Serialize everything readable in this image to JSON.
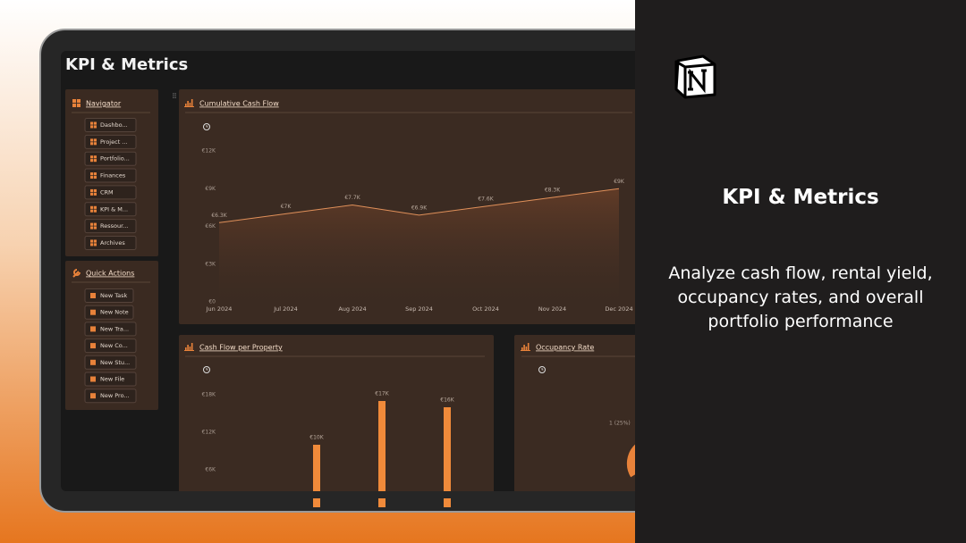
{
  "device": {
    "page_title": "KPI & Metrics"
  },
  "navigator": {
    "title": "Navigator",
    "items": [
      "Dashbo...",
      "Project ...",
      "Portfolio...",
      "Finances",
      "CRM",
      "KPI & M...",
      "Ressour...",
      "Archives"
    ]
  },
  "quick_actions": {
    "title": "Quick Actions",
    "items": [
      "New Task",
      "New Note",
      "New Tra...",
      "New Co...",
      "New Stu...",
      "New File",
      "New Pro..."
    ]
  },
  "chart_data": [
    {
      "type": "line",
      "title": "Cumulative Cash Flow",
      "color": "#e0905a",
      "categories": [
        "Jun 2024",
        "Jul 2024",
        "Aug 2024",
        "Sep 2024",
        "Oct 2024",
        "Nov 2024",
        "Dec 2024"
      ],
      "values": [
        6300,
        7000,
        7700,
        6900,
        7600,
        8300,
        9000
      ],
      "value_labels": [
        "€6.3K",
        "€7K",
        "€7.7K",
        "€6.9K",
        "€7.6K",
        "€8.3K",
        "€9K"
      ],
      "ylim": [
        0,
        12000
      ],
      "yticks": [
        {
          "value": 0,
          "label": "€0"
        },
        {
          "value": 3000,
          "label": "€3K"
        },
        {
          "value": 6000,
          "label": "€6K"
        },
        {
          "value": 9000,
          "label": "€9K"
        },
        {
          "value": 12000,
          "label": "€12K"
        }
      ]
    },
    {
      "type": "bar",
      "title": "Cash Flow per Property",
      "color": "#f08a3a",
      "categories": [
        null,
        null,
        null,
        null
      ],
      "values": [
        null,
        10000,
        17000,
        16000
      ],
      "value_labels": [
        null,
        "€10K",
        "€17K",
        "€16K"
      ],
      "ylim": [
        0,
        18000
      ],
      "yticks": [
        {
          "value": 6000,
          "label": "€6K"
        },
        {
          "value": 12000,
          "label": "€12K"
        },
        {
          "value": 18000,
          "label": "€18K"
        }
      ]
    }
  ],
  "occupancy": {
    "title": "Occupancy Rate",
    "label": "1 (25%)"
  },
  "promo": {
    "title": "KPI & Metrics",
    "description": "Analyze cash flow, rental yield, occupancy rates, and overall portfolio performance"
  }
}
